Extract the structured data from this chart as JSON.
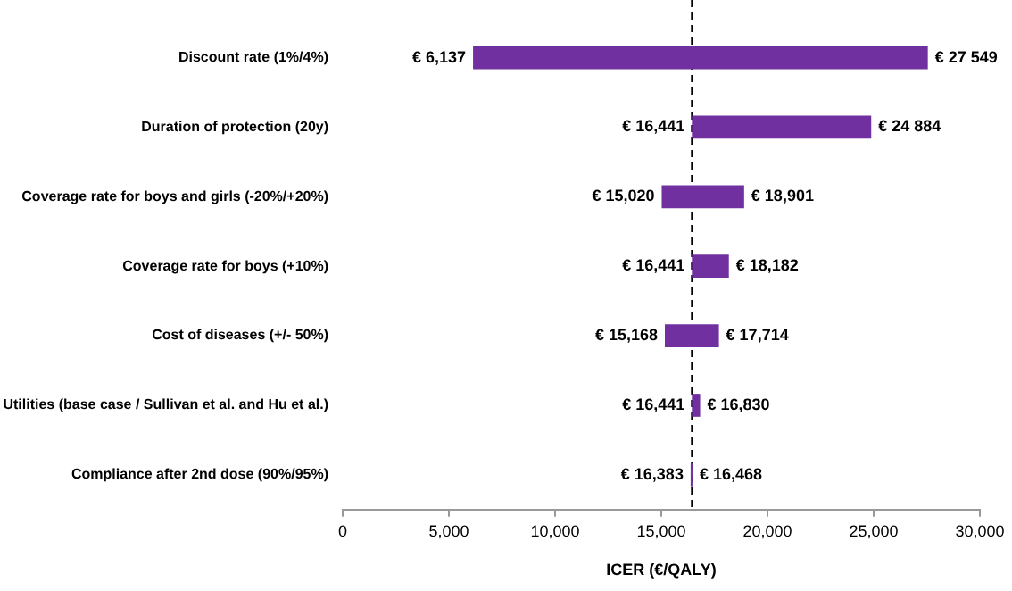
{
  "chart_data": {
    "type": "bar",
    "orientation": "horizontal",
    "xlabel": "ICER (€/QALY)",
    "categories": [
      "Discount rate (1%/4%)",
      "Duration of protection (20y)",
      "Coverage rate for boys and girls (-20%/+20%)",
      "Coverage rate for boys (+10%)",
      "Cost of diseases (+/- 50%)",
      "Utilities (base case / Sullivan et al. and Hu et al.)",
      "Compliance after 2nd dose (90%/95%)"
    ],
    "base": [
      6137,
      16441,
      15020,
      16441,
      15168,
      16441,
      16383
    ],
    "values": [
      21412,
      8443,
      3881,
      1741,
      2546,
      389,
      85
    ],
    "color": "#7030a0",
    "xlim": [
      0,
      30000
    ],
    "xticks": [
      0,
      {
        "value": 5000,
        "label": "5,000"
      },
      {
        "value": 10000,
        "label": "10,000"
      },
      {
        "value": 15000,
        "label": "15,000"
      },
      {
        "value": 20000,
        "label": "20,000"
      },
      {
        "value": 25000,
        "label": "25,000"
      },
      {
        "value": 30000,
        "label": "30,000"
      }
    ],
    "ref_lines": [
      {
        "axis": "x",
        "value": 16441,
        "color": "#000000",
        "line_style": "dashed"
      }
    ],
    "annotations": [
      {
        "text": "€ 6,137",
        "x": 6137,
        "y": "Discount rate (1%/4%)"
      },
      {
        "text": "€ 27 549",
        "x": 27549,
        "y": "Discount rate (1%/4%)"
      },
      {
        "text": "€ 16,441",
        "x": 16441,
        "y": "Duration of protection (20y)"
      },
      {
        "text": "€ 24 884",
        "x": 24884,
        "y": "Duration of protection (20y)"
      },
      {
        "text": "€ 15,020",
        "x": 15020,
        "y": "Coverage rate for boys and girls (-20%/+20%)"
      },
      {
        "text": "€ 18,901",
        "x": 18901,
        "y": "Coverage rate for boys and girls (-20%/+20%)"
      },
      {
        "text": "€ 16,441",
        "x": 16441,
        "y": "Coverage rate for boys (+10%)"
      },
      {
        "text": "€ 18,182",
        "x": 18182,
        "y": "Coverage rate for boys (+10%)"
      },
      {
        "text": "€ 15,168",
        "x": 15168,
        "y": "Cost of diseases (+/- 50%)"
      },
      {
        "text": "€ 17,714",
        "x": 17714,
        "y": "Cost of diseases (+/- 50%)"
      },
      {
        "text": "€ 16,441",
        "x": 16441,
        "y": "Utilities (base case / Sullivan et al. and Hu et al.)"
      },
      {
        "text": "€ 16,830",
        "x": 16830,
        "y": "Utilities (base case / Sullivan et al. and Hu et al.)"
      },
      {
        "text": "€ 16,383",
        "x": 16383,
        "y": "Compliance after 2nd dose (90%/95%)"
      },
      {
        "text": "€ 16,468",
        "x": 16468,
        "y": "Compliance after 2nd dose (90%/95%)"
      }
    ]
  }
}
